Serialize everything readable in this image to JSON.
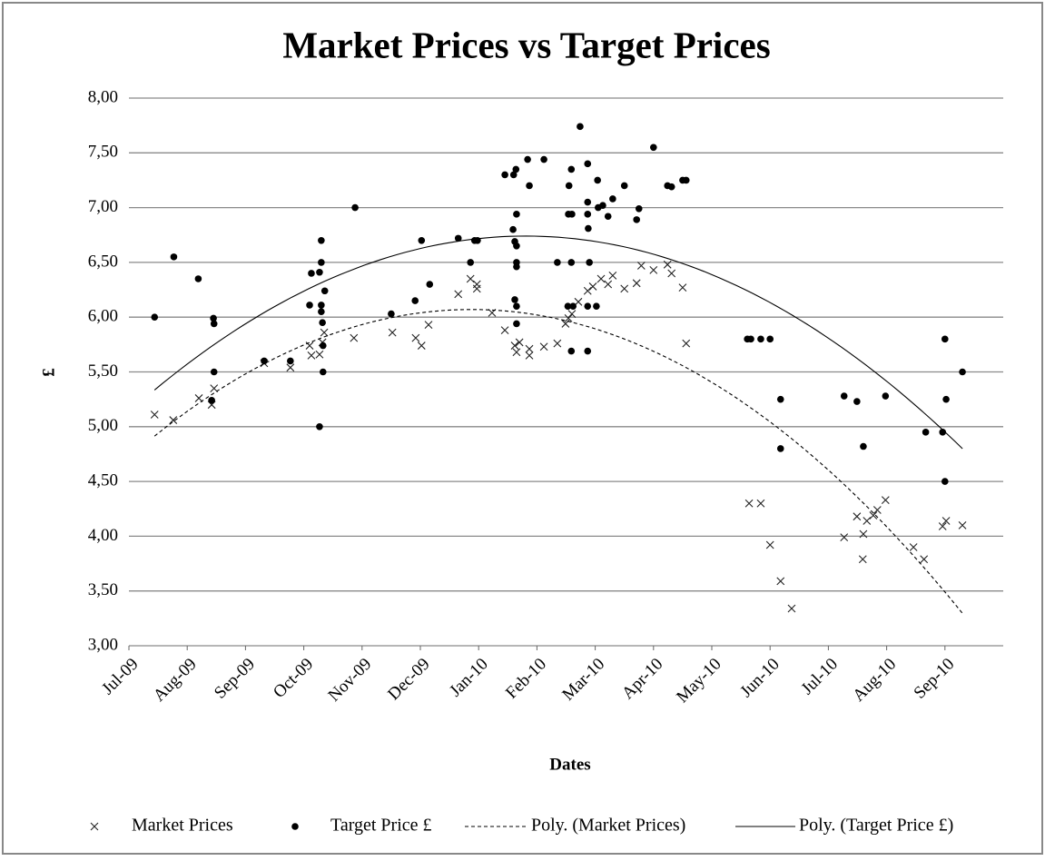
{
  "chart_data": {
    "type": "scatter",
    "title": "Market Prices vs Target Prices",
    "xlabel": "Dates",
    "ylabel": "£",
    "xlim": [
      0,
      15
    ],
    "xticks": [
      {
        "value": 0,
        "label": "Jul-09"
      },
      {
        "value": 1,
        "label": "Aug-09"
      },
      {
        "value": 2,
        "label": "Sep-09"
      },
      {
        "value": 3,
        "label": "Oct-09"
      },
      {
        "value": 4,
        "label": "Nov-09"
      },
      {
        "value": 5,
        "label": "Dec-09"
      },
      {
        "value": 6,
        "label": "Jan-10"
      },
      {
        "value": 7,
        "label": "Feb-10"
      },
      {
        "value": 8,
        "label": "Mar-10"
      },
      {
        "value": 9,
        "label": "Apr-10"
      },
      {
        "value": 10,
        "label": "May-10"
      },
      {
        "value": 11,
        "label": "Jun-10"
      },
      {
        "value": 12,
        "label": "Jul-10"
      },
      {
        "value": 13,
        "label": "Aug-10"
      },
      {
        "value": 14,
        "label": "Sep-10"
      }
    ],
    "ylim": [
      3,
      8
    ],
    "yticks": [
      {
        "value": 3,
        "label": "3,00"
      },
      {
        "value": 3.5,
        "label": "3,50"
      },
      {
        "value": 4,
        "label": "4,00"
      },
      {
        "value": 4.5,
        "label": "4,50"
      },
      {
        "value": 5,
        "label": "5,00"
      },
      {
        "value": 5.5,
        "label": "5,50"
      },
      {
        "value": 6,
        "label": "6,00"
      },
      {
        "value": 6.5,
        "label": "6,50"
      },
      {
        "value": 7,
        "label": "7,00"
      },
      {
        "value": 7.5,
        "label": "7,50"
      },
      {
        "value": 8,
        "label": "8,00"
      }
    ],
    "grid": true,
    "series": [
      {
        "name": "Market Prices",
        "marker": "x",
        "color": "#222222",
        "x": [
          0.44,
          0.76,
          1.2,
          1.42,
          1.46,
          2.32,
          2.77,
          3.1,
          3.13,
          3.27,
          3.32,
          3.35,
          3.86,
          4.52,
          4.92,
          5.02,
          5.14,
          5.65,
          5.86,
          5.97,
          5.97,
          6.23,
          6.45,
          6.62,
          6.65,
          6.7,
          6.87,
          6.87,
          7.12,
          7.35,
          7.49,
          7.54,
          7.6,
          7.71,
          7.87,
          7.96,
          8.1,
          8.22,
          8.3,
          8.5,
          8.71,
          8.79,
          9.0,
          9.24,
          9.31,
          9.5,
          9.56,
          10.64,
          10.84,
          11.0,
          11.18,
          11.37,
          12.27,
          12.49,
          12.59,
          12.6,
          12.66,
          12.77,
          12.84,
          12.98,
          13.46,
          13.64,
          13.96,
          14.02,
          14.3
        ],
        "y": [
          5.11,
          5.06,
          5.26,
          5.2,
          5.35,
          5.58,
          5.54,
          5.74,
          5.65,
          5.66,
          5.77,
          5.86,
          5.81,
          5.86,
          5.81,
          5.74,
          5.93,
          6.21,
          6.35,
          6.3,
          6.26,
          6.04,
          5.88,
          5.74,
          5.68,
          5.77,
          5.71,
          5.65,
          5.73,
          5.76,
          5.94,
          5.99,
          6.03,
          6.14,
          6.24,
          6.28,
          6.35,
          6.3,
          6.38,
          6.26,
          6.31,
          6.47,
          6.43,
          6.48,
          6.4,
          6.27,
          5.76,
          4.3,
          4.3,
          3.92,
          3.59,
          3.34,
          3.99,
          4.18,
          3.79,
          4.02,
          4.14,
          4.19,
          4.24,
          4.33,
          3.9,
          3.79,
          4.09,
          4.14,
          4.1
        ]
      },
      {
        "name": "Target Price £",
        "marker": "dot",
        "color": "#000000",
        "x": [
          0.44,
          0.77,
          1.19,
          1.45,
          1.46,
          1.46,
          1.42,
          2.32,
          2.77,
          3.1,
          3.13,
          3.27,
          3.3,
          3.3,
          3.3,
          3.3,
          3.32,
          3.33,
          3.33,
          3.27,
          3.36,
          3.88,
          4.5,
          4.91,
          5.02,
          5.16,
          5.65,
          5.86,
          5.93,
          5.98,
          6.45,
          6.6,
          6.64,
          6.65,
          6.59,
          6.62,
          6.65,
          6.65,
          6.65,
          6.62,
          6.65,
          6.65,
          6.84,
          6.87,
          7.12,
          7.35,
          7.54,
          7.6,
          7.59,
          7.55,
          7.59,
          7.53,
          7.62,
          7.59,
          7.74,
          7.87,
          7.87,
          7.87,
          7.88,
          7.9,
          7.87,
          7.87,
          8.02,
          8.04,
          8.05,
          8.13,
          8.22,
          8.3,
          8.5,
          8.71,
          8.75,
          9.0,
          9.24,
          9.31,
          9.5,
          9.56,
          10.61,
          10.67,
          10.84,
          11.0,
          11.18,
          11.18,
          12.27,
          12.49,
          12.6,
          12.98,
          13.67,
          13.96,
          14.0,
          14.02,
          14.0,
          14.3
        ],
        "y": [
          6.0,
          6.55,
          6.35,
          5.99,
          5.94,
          5.5,
          5.24,
          5.6,
          5.6,
          6.11,
          6.4,
          6.41,
          6.7,
          6.5,
          6.11,
          6.05,
          5.95,
          5.74,
          5.5,
          5.0,
          6.24,
          7.0,
          6.03,
          6.15,
          6.7,
          6.3,
          6.72,
          6.5,
          6.7,
          6.7,
          7.3,
          7.3,
          7.35,
          6.94,
          6.8,
          6.69,
          6.65,
          6.5,
          6.46,
          6.16,
          6.1,
          5.94,
          7.44,
          7.2,
          7.44,
          6.5,
          6.94,
          6.94,
          7.35,
          7.2,
          6.5,
          6.1,
          6.1,
          5.69,
          7.74,
          7.4,
          7.05,
          6.94,
          6.81,
          6.5,
          6.1,
          5.69,
          6.1,
          7.25,
          7.0,
          7.02,
          6.92,
          7.08,
          7.2,
          6.89,
          6.99,
          7.55,
          7.2,
          7.19,
          7.25,
          7.25,
          5.8,
          5.8,
          5.8,
          5.8,
          5.25,
          4.8,
          5.28,
          5.23,
          4.82,
          5.28,
          4.95,
          4.95,
          5.8,
          5.25,
          4.5,
          5.5
        ]
      }
    ],
    "trendlines": [
      {
        "name": "Poly. (Market Prices)",
        "series": 0,
        "order": 2,
        "dash": "4 3"
      },
      {
        "name": "Poly. (Target Price £)",
        "series": 1,
        "order": 2,
        "dash": "none"
      }
    ]
  }
}
